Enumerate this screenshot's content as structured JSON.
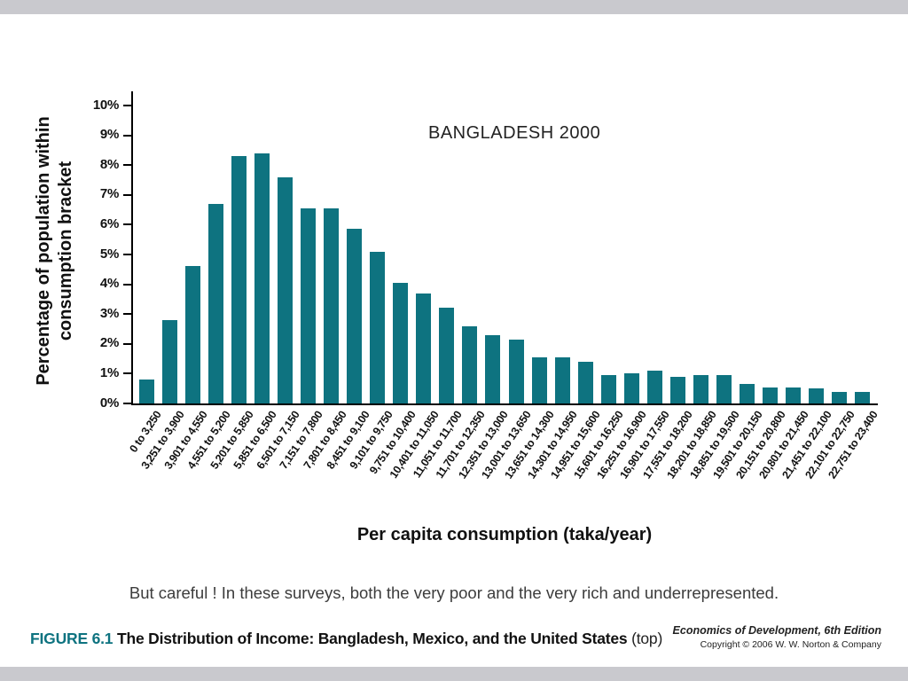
{
  "slide": {
    "caption_note": "But careful !  In these surveys, both the very poor and the very rich and underrepresented.",
    "figure": {
      "label": "FIGURE 6.1",
      "title": "The Distribution of Income: Bangladesh, Mexico, and the United States",
      "suffix": "(top)"
    },
    "credit": {
      "line1": "Economics of Development, 6th Edition",
      "line2": "Copyright © 2006 W. W. Norton & Company"
    }
  },
  "chart_data": {
    "type": "bar",
    "title": "BANGLADESH 2000",
    "xlabel": "Per capita consumption (taka/year)",
    "ylabel": "Percentage of population within consumption bracket",
    "ylabel_lines": [
      "Percentage of population within",
      "consumption bracket"
    ],
    "ylim": [
      0,
      10
    ],
    "ytick_labels": [
      "0%",
      "1%",
      "2%",
      "3%",
      "4%",
      "5%",
      "6%",
      "7%",
      "8%",
      "9%",
      "10%"
    ],
    "yticks": [
      0,
      1,
      2,
      3,
      4,
      5,
      6,
      7,
      8,
      9,
      10
    ],
    "grid": false,
    "legend": false,
    "bar_color": "#0E7380",
    "categories": [
      "0 to 3,250",
      "3,251 to 3,900",
      "3,901 to 4,550",
      "4,551 to 5,200",
      "5,201 to 5,850",
      "5,851 to 6,500",
      "6,501 to 7,150",
      "7,151 to 7,800",
      "7,801 to 8,450",
      "8,451 to 9,100",
      "9,101 to 9,750",
      "9,751 to 10,400",
      "10,401 to 11,050",
      "11,051 to 11,700",
      "11,701 to 12,350",
      "12,351 to 13,000",
      "13,001 to 13,650",
      "13,651 to 14,300",
      "14,301 to 14,950",
      "14,951 to 15,600",
      "15,601 to 16,250",
      "16,251 to 16,900",
      "16,901 to 17,550",
      "17,551 to 18,200",
      "18,201 to 18,850",
      "18,851 to 19,500",
      "19,501 to 20,150",
      "20,151 to 20,800",
      "20,801 to 21,450",
      "21,451 to 22,100",
      "22,101 to 22,750",
      "22,751 to 23,400"
    ],
    "values": [
      0.8,
      2.8,
      4.6,
      6.7,
      8.3,
      8.4,
      7.6,
      6.55,
      6.55,
      5.85,
      5.1,
      4.05,
      3.7,
      3.2,
      2.6,
      2.3,
      2.15,
      1.55,
      1.55,
      1.4,
      0.95,
      1.0,
      1.1,
      0.9,
      0.95,
      0.95,
      0.65,
      0.55,
      0.55,
      0.5,
      0.4,
      0.4
    ]
  }
}
